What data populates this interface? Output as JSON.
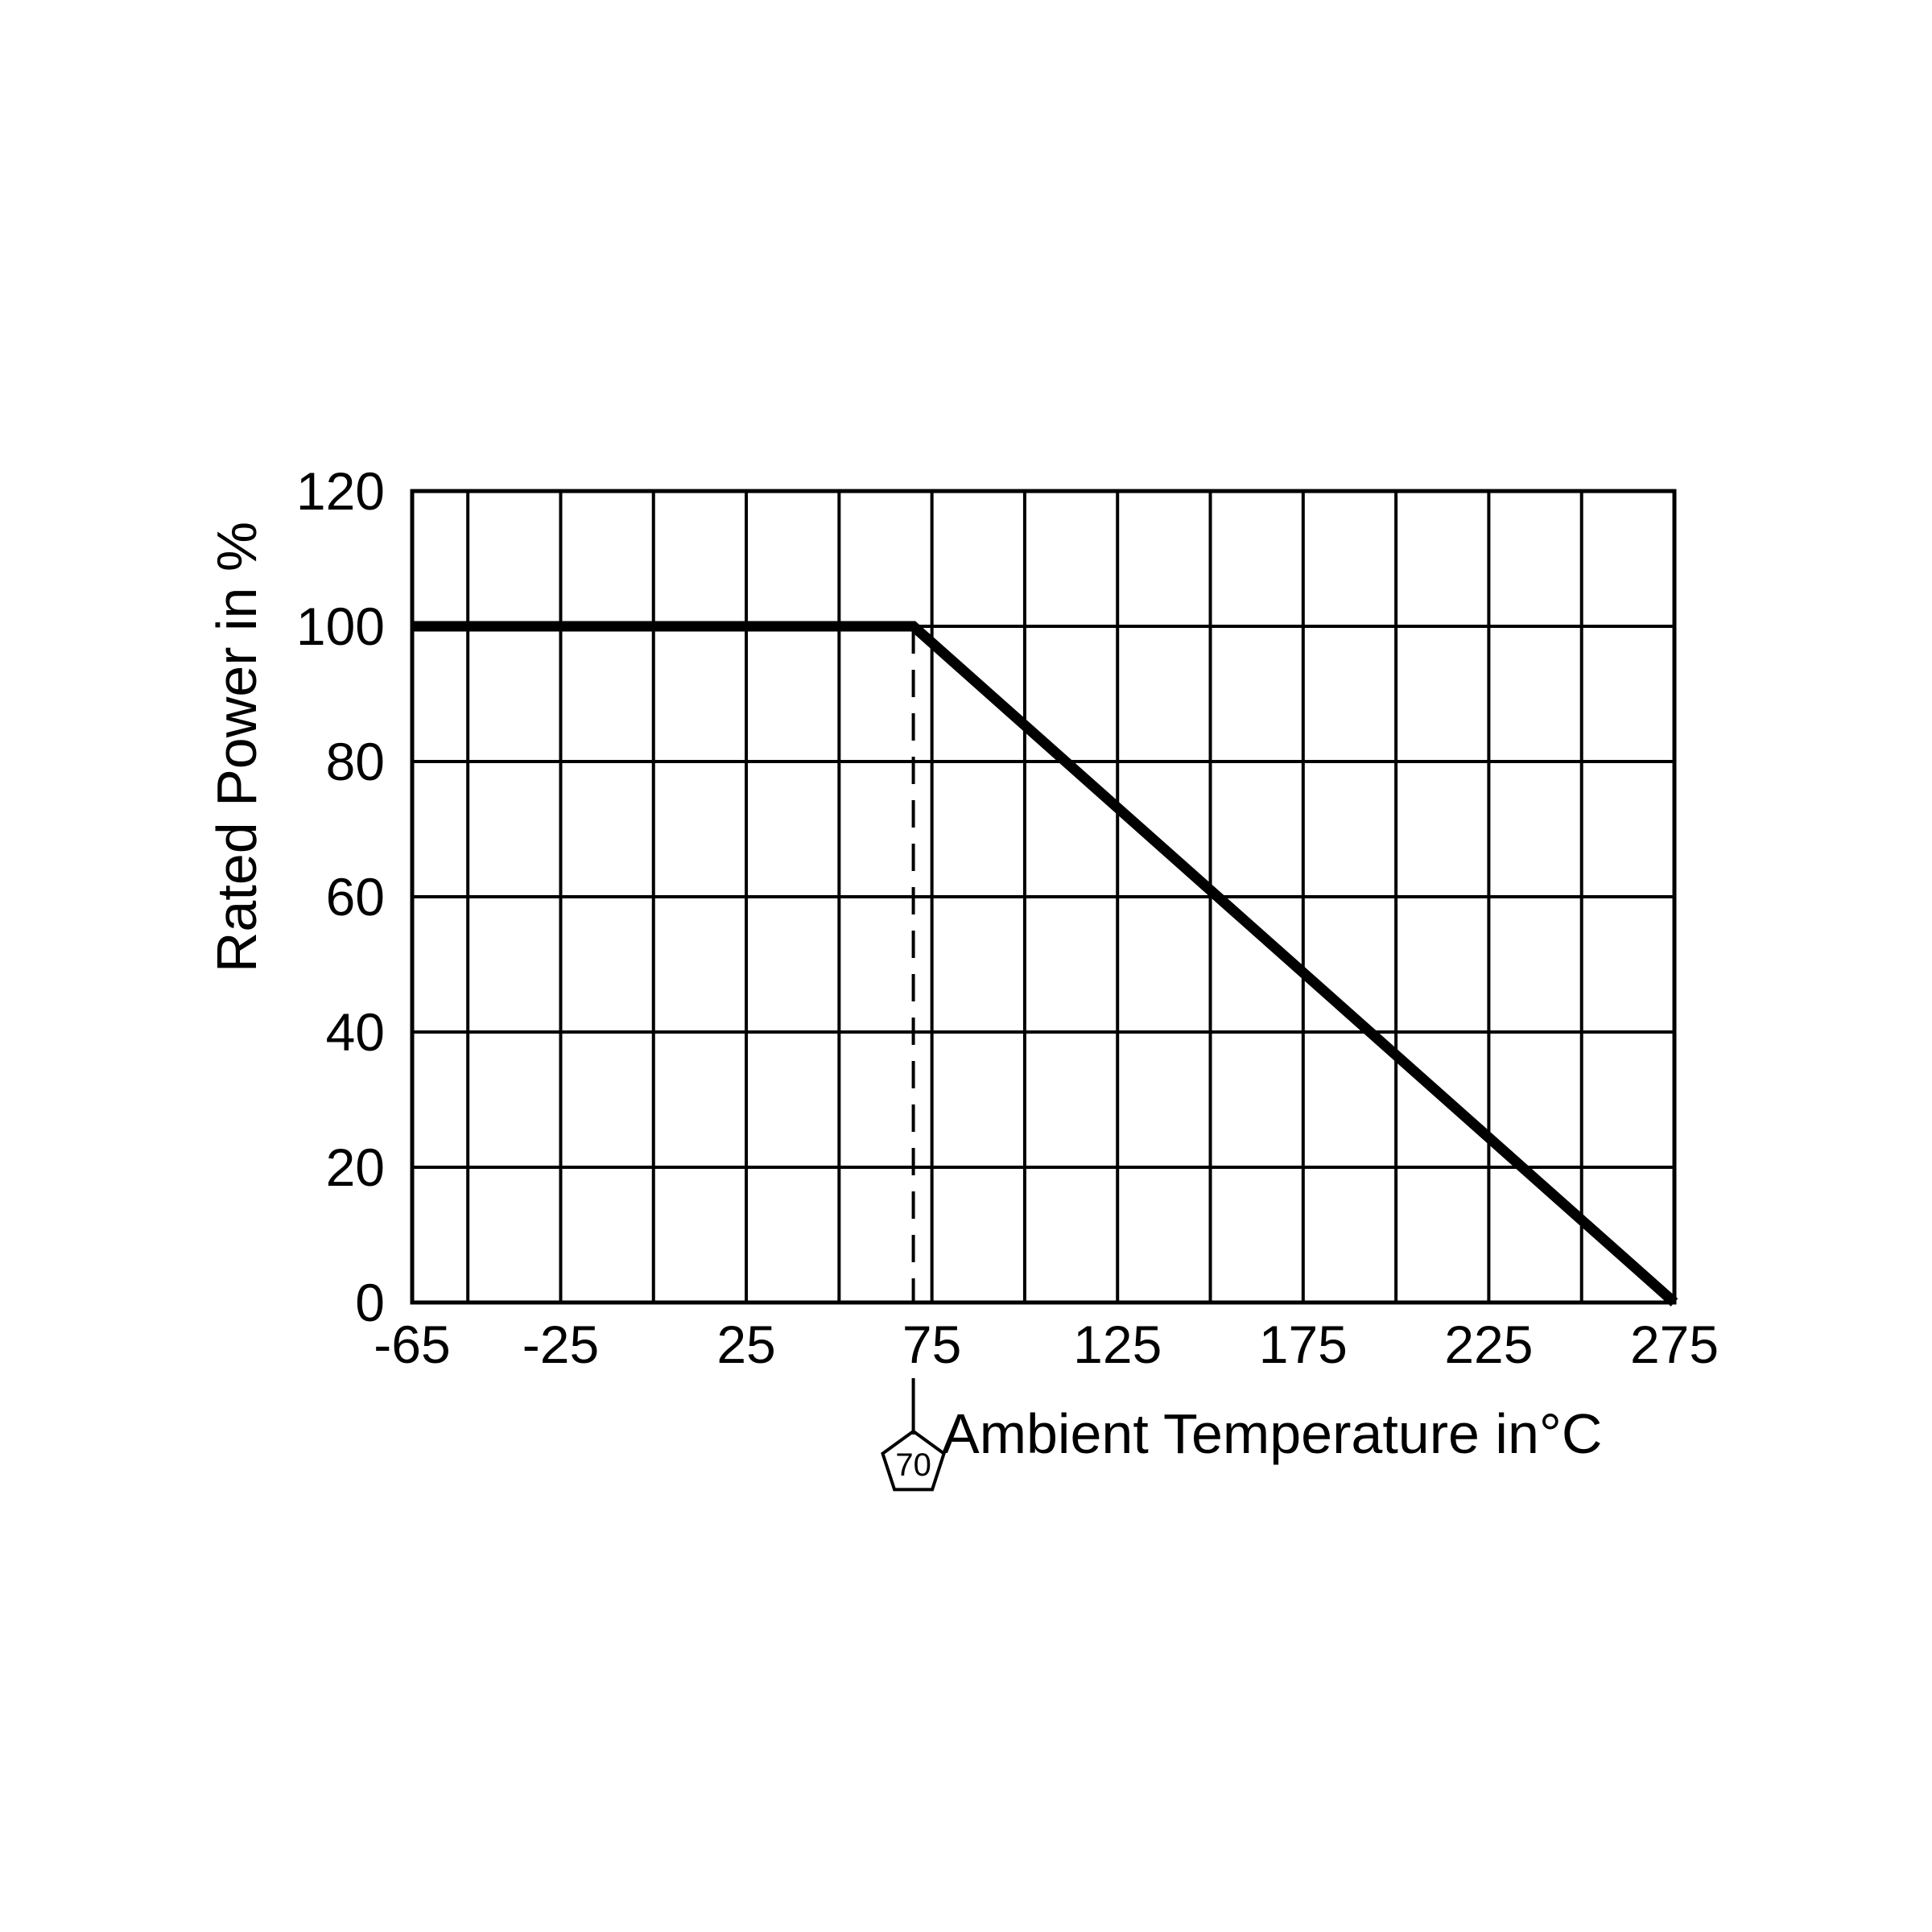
{
  "chart_data": {
    "type": "line",
    "title": "",
    "xlabel": "Ambient Temperature in°C",
    "ylabel": "Rated Power in %",
    "xlim": [
      -65,
      275
    ],
    "ylim": [
      0,
      120
    ],
    "x_ticks": [
      -65,
      -25,
      25,
      75,
      125,
      175,
      225,
      275
    ],
    "x_tick_labels": [
      "-65",
      "-25",
      "25",
      "75",
      "125",
      "175",
      "225",
      "275"
    ],
    "x_gridlines": [
      -65,
      -50,
      -25,
      0,
      25,
      50,
      75,
      100,
      125,
      150,
      175,
      200,
      225,
      250,
      275
    ],
    "y_ticks": [
      0,
      20,
      40,
      60,
      80,
      100,
      120
    ],
    "y_tick_labels": [
      "0",
      "20",
      "40",
      "60",
      "80",
      "100",
      "120"
    ],
    "grid": true,
    "series": [
      {
        "x": [
          -65,
          70,
          275
        ],
        "y": [
          100,
          100,
          0
        ]
      }
    ],
    "reference_line": {
      "x": 70,
      "style": "dashed"
    },
    "annotations": [
      {
        "text": "70",
        "x": 70,
        "shape": "pentagon"
      }
    ],
    "colors": {
      "line": "#000000",
      "grid": "#000000",
      "background": "#ffffff"
    }
  }
}
